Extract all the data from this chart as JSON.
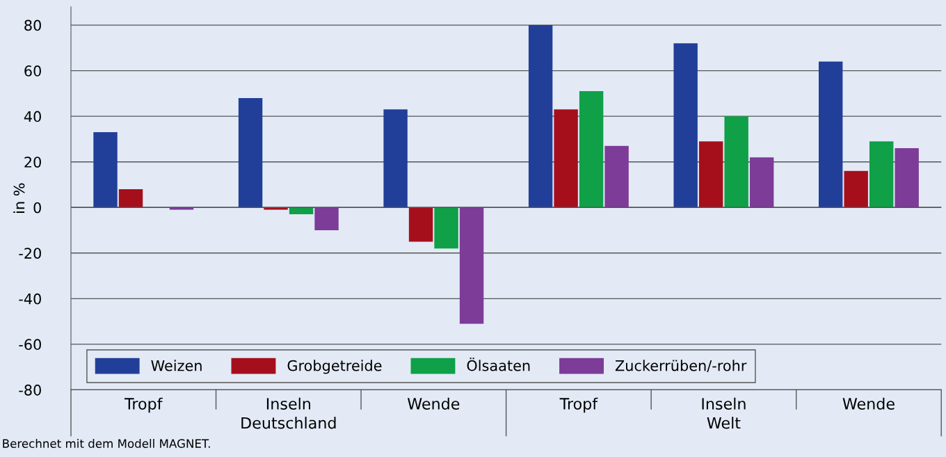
{
  "chart_data": {
    "type": "bar",
    "ylabel": "in %",
    "categories": [
      "Tropf",
      "Inseln",
      "Wende",
      "Tropf",
      "Inseln",
      "Wende"
    ],
    "series": [
      {
        "name": "Weizen",
        "color": "#213f99",
        "values": [
          33,
          48,
          43,
          80,
          72,
          64
        ]
      },
      {
        "name": "Grobgetreide",
        "color": "#a50f1c",
        "values": [
          8,
          -1,
          -15,
          43,
          29,
          16
        ]
      },
      {
        "name": "Ölsaaten",
        "color": "#0fa048",
        "values": [
          0,
          -3,
          -18,
          51,
          40,
          29
        ]
      },
      {
        "name": "Zuckerrüben/-rohr",
        "color": "#7d3c98",
        "values": [
          -1,
          -10,
          -51,
          27,
          22,
          26
        ]
      }
    ],
    "ylim": [
      -80,
      88
    ],
    "yticks": [
      -80,
      -60,
      -40,
      -20,
      0,
      20,
      40,
      60,
      80
    ],
    "grid": "y",
    "legend": "bottom left",
    "annotations": [
      "Deutschland",
      "Welt",
      "Berechnet mit dem Modell MAGNET."
    ]
  }
}
